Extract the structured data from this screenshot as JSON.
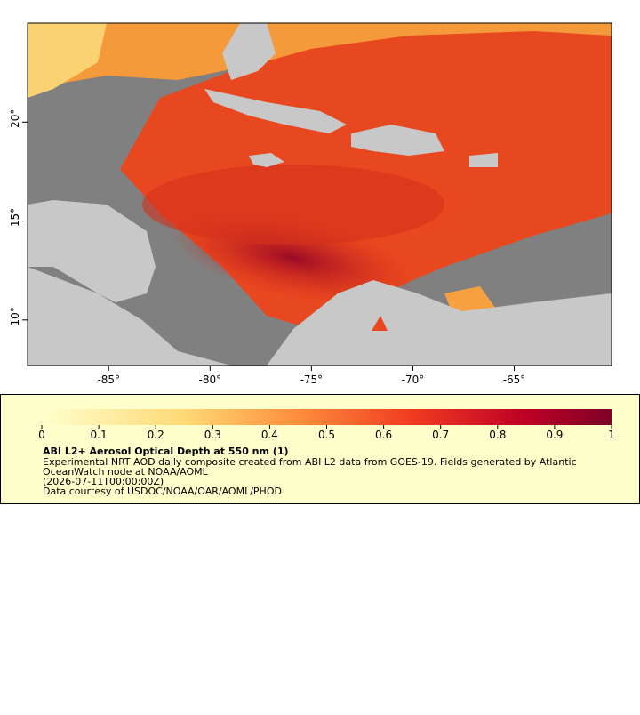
{
  "map": {
    "xlim": [
      -89,
      -60.2
    ],
    "ylim": [
      7.7,
      25
    ],
    "xticks": [
      {
        "value": -85,
        "label": "-85°"
      },
      {
        "value": -80,
        "label": "-80°"
      },
      {
        "value": -75,
        "label": "-75°"
      },
      {
        "value": -70,
        "label": "-70°"
      },
      {
        "value": -65,
        "label": "-65°"
      }
    ],
    "yticks": [
      {
        "value": 10,
        "label": "10°"
      },
      {
        "value": 15,
        "label": "15°"
      },
      {
        "value": 20,
        "label": "20°"
      }
    ]
  },
  "colorbar": {
    "lim": [
      0,
      1
    ],
    "ticks": [
      0,
      0.1,
      0.2,
      0.3,
      0.4,
      0.5,
      0.6,
      0.7,
      0.8,
      0.9,
      1
    ]
  },
  "legend": {
    "title": "ABI L2+ Aerosol Optical Depth at 550 nm (1)",
    "lines": [
      "Experimental NRT AOD daily composite created from ABI L2 data from GOES-19. Fields generated by Atlantic",
      "OceanWatch node at NOAA/AOML",
      "(2026-07-11T00:00:00Z)",
      "Data courtesy of USDOC/NOAA/OAR/AOML/PHOD"
    ]
  }
}
